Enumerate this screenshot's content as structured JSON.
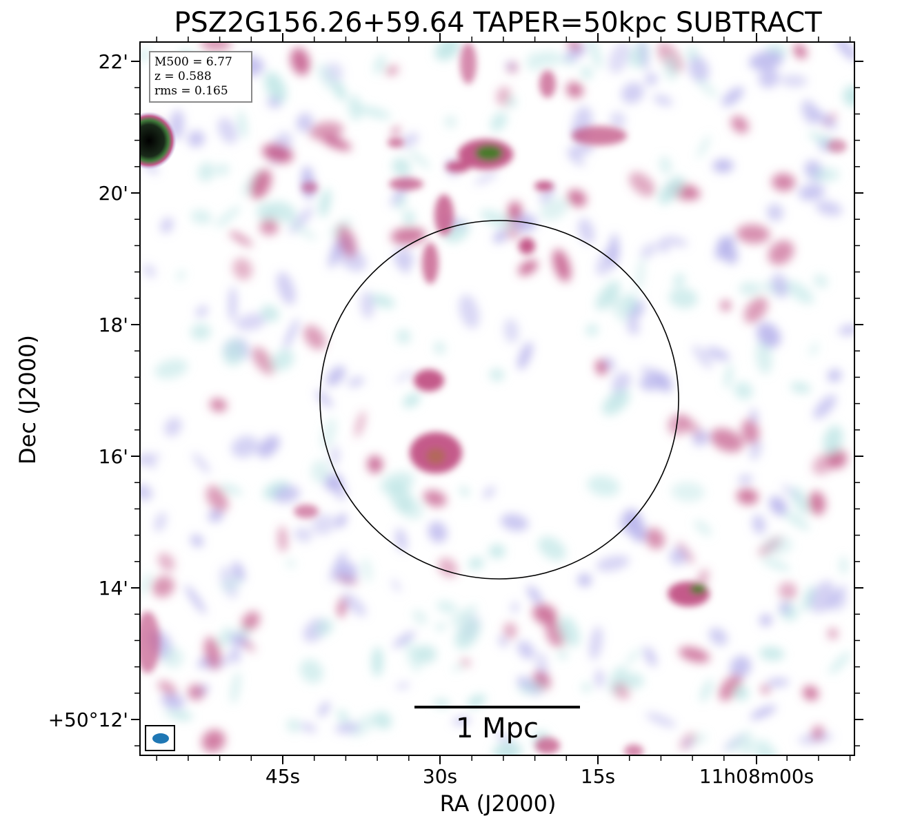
{
  "title": "PSZ2G156.26+59.64 TAPER=50kpc SUBTRACT",
  "info": {
    "line1": "M500 = 6.77",
    "line2": "z = 0.588",
    "line3": "rms = 0.165"
  },
  "axes": {
    "xlabel": "RA (J2000)",
    "ylabel": "Dec (J2000)",
    "xticks": [
      "45s",
      "30s",
      "15s",
      "11h08m00s"
    ],
    "yticks": [
      "22'",
      "20'",
      "18'",
      "16'",
      "14'",
      "+50°12'"
    ]
  },
  "scalebar": {
    "label": "1 Mpc"
  },
  "colors": {
    "beam": "#1f77b4",
    "circle": "#000000",
    "map_low": "#bfe6e6",
    "map_mid": "#b8b4ec",
    "map_high": "#c45a8a",
    "map_peak": "#4a7a2a",
    "source_core": "#000000"
  }
}
